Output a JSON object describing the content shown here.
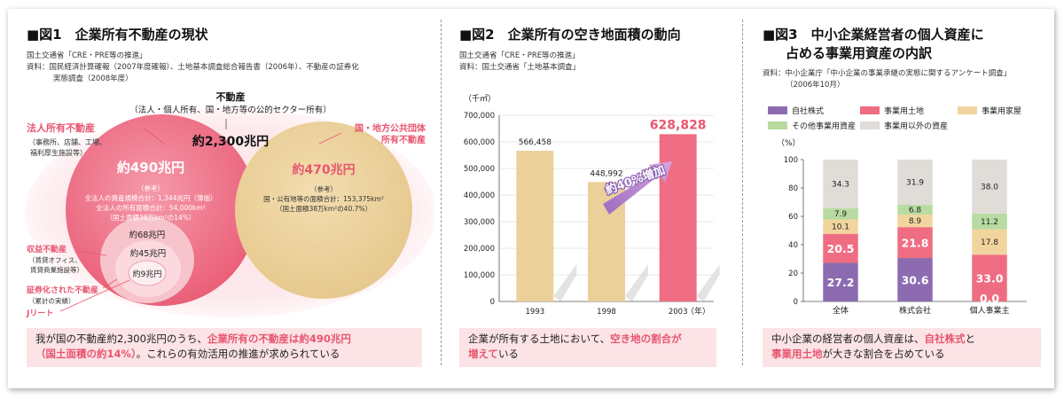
{
  "fig1": {
    "title": "■図1　企業所有不動産の現状",
    "source1": "国土交通省「CRE・PRE等の推進」",
    "source2": "資料：国民経済計算確報（2007年度確報）、土地基本調査総合報告書（2006年）、不動産の証券化",
    "source3": "実態調査（2008年度）",
    "top_label": "不動産",
    "top_sub": "（法人・個人所有、国・地方等の公的セクター所有）",
    "total": "約2,300兆円",
    "corp_label": "法人所有不動産",
    "corp_sub1": "（事務所、店舗、工場、",
    "corp_sub2": "福利厚生施設等）",
    "corp_value": "約490兆円",
    "corp_note1": "（参考）",
    "corp_note2": "全法人の資産規模合計：1,344兆円（簿価）",
    "corp_note3": "全法人の所有面積合計：54,000km²",
    "corp_note4": "（国土面積38万km²の14%）",
    "gov_label1": "国・地方公共団体",
    "gov_label2": "所有不動産",
    "gov_value": "約470兆円",
    "gov_note1": "（参考）",
    "gov_note2": "国・公有地等の面積合計：153,375km²",
    "gov_note3": "（国土面積38万km²の40.7%）",
    "income_label": "収益不動産",
    "income_sub1": "（賃貸オフィス、",
    "income_sub2": "賃貸商業施設等）",
    "income_value": "約68兆円",
    "sec_label": "証券化された不動産",
    "sec_sub": "（累計の実績）",
    "sec_value": "約45兆円",
    "jreit_label": "Jリート",
    "jreit_value": "約9兆円",
    "caption_1": "我が国の不動産約2,300兆円のうち、",
    "caption_2": "企業所有の不動産は約490兆円",
    "caption_3": "（国土面積の約14%）",
    "caption_4": "。これらの有効活用の推進が求められている"
  },
  "fig2": {
    "title": "■図2　企業所有の空き地面積の動向",
    "source1": "国土交通省「CRE・PRE等の推進」",
    "source2": "資料：国土交通省「土地基本調査」",
    "arrow_label": "約40%増加",
    "caption_1": "企業が所有する土地において、",
    "caption_2": "空き地の割合が",
    "caption_3": "増えて",
    "caption_4": "いる"
  },
  "fig3": {
    "title_1": "■図3　中小企業経営者の個人資産に",
    "title_2": "占める事業用資産の内訳",
    "source1": "資料：中小企業庁「中小企業の事業承継の実態に関するアンケート調査」",
    "source2": "（2006年10月）",
    "caption_1": "中小企業の経営者の個人資産は、",
    "caption_2": "自社株式",
    "caption_3": "と",
    "caption_4": "事業用土地",
    "caption_5": "が大きな割合を占めている"
  },
  "chart_data": [
    {
      "type": "bar",
      "ylabel": "（千㎡）",
      "xlabel": "（年）",
      "categories": [
        "1993",
        "1998",
        "2003"
      ],
      "values": [
        566458,
        448992,
        628828
      ],
      "value_labels": [
        "566,458",
        "448,992",
        "628,828"
      ],
      "ylim": [
        0,
        700000
      ],
      "yticks": [
        "0",
        "100,000",
        "200,000",
        "300,000",
        "400,000",
        "500,000",
        "600,000",
        "700,000"
      ],
      "colors": [
        "#ecd09a",
        "#ecd09a",
        "#ef6d82"
      ],
      "annotation": "約40%増加"
    },
    {
      "type": "bar",
      "stacked": true,
      "ylabel": "（%）",
      "ylim": [
        0,
        100
      ],
      "yticks": [
        "0",
        "20",
        "40",
        "60",
        "80",
        "100"
      ],
      "categories": [
        "全体",
        "株式会社",
        "個人事業主"
      ],
      "series": [
        {
          "name": "自社株式",
          "color": "#8c6bb1",
          "values": [
            27.2,
            30.6,
            0.0
          ],
          "labels": [
            "27.2",
            "30.6",
            "0.0"
          ]
        },
        {
          "name": "事業用土地",
          "color": "#ef6d82",
          "values": [
            20.5,
            21.8,
            33.0
          ],
          "labels": [
            "20.5",
            "21.8",
            "33.0"
          ]
        },
        {
          "name": "事業用家屋",
          "color": "#f2d59e",
          "values": [
            10.1,
            8.9,
            17.8
          ],
          "labels": [
            "10.1",
            "8.9",
            "17.8"
          ]
        },
        {
          "name": "その他事業用資産",
          "color": "#b7dba0",
          "values": [
            7.9,
            6.8,
            11.2
          ],
          "labels": [
            "7.9",
            "6.8",
            "11.2"
          ]
        },
        {
          "name": "事業用以外の資産",
          "color": "#e0dcd8",
          "values": [
            34.3,
            31.9,
            38.0
          ],
          "labels": [
            "34.3",
            "31.9",
            "38.0"
          ]
        }
      ]
    }
  ]
}
